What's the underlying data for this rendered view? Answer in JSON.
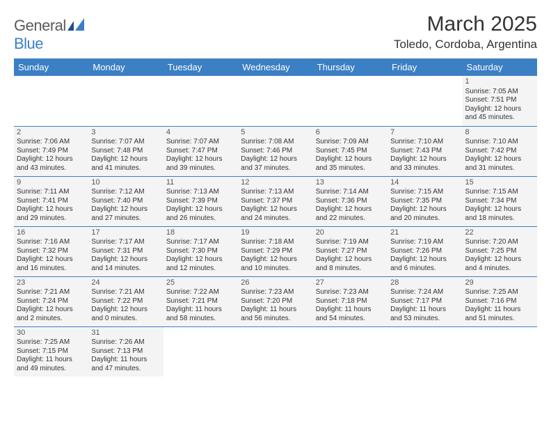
{
  "logo": {
    "text1": "General",
    "text2": "Blue"
  },
  "title": "March 2025",
  "location": "Toledo, Cordoba, Argentina",
  "colors": {
    "header_bg": "#3b7fc4",
    "header_text": "#ffffff",
    "cell_bg": "#f4f4f4",
    "border": "#3b7fc4"
  },
  "weekdays": [
    "Sunday",
    "Monday",
    "Tuesday",
    "Wednesday",
    "Thursday",
    "Friday",
    "Saturday"
  ],
  "weeks": [
    [
      null,
      null,
      null,
      null,
      null,
      null,
      {
        "n": "1",
        "sr": "Sunrise: 7:05 AM",
        "ss": "Sunset: 7:51 PM",
        "dl1": "Daylight: 12 hours",
        "dl2": "and 45 minutes."
      }
    ],
    [
      {
        "n": "2",
        "sr": "Sunrise: 7:06 AM",
        "ss": "Sunset: 7:49 PM",
        "dl1": "Daylight: 12 hours",
        "dl2": "and 43 minutes."
      },
      {
        "n": "3",
        "sr": "Sunrise: 7:07 AM",
        "ss": "Sunset: 7:48 PM",
        "dl1": "Daylight: 12 hours",
        "dl2": "and 41 minutes."
      },
      {
        "n": "4",
        "sr": "Sunrise: 7:07 AM",
        "ss": "Sunset: 7:47 PM",
        "dl1": "Daylight: 12 hours",
        "dl2": "and 39 minutes."
      },
      {
        "n": "5",
        "sr": "Sunrise: 7:08 AM",
        "ss": "Sunset: 7:46 PM",
        "dl1": "Daylight: 12 hours",
        "dl2": "and 37 minutes."
      },
      {
        "n": "6",
        "sr": "Sunrise: 7:09 AM",
        "ss": "Sunset: 7:45 PM",
        "dl1": "Daylight: 12 hours",
        "dl2": "and 35 minutes."
      },
      {
        "n": "7",
        "sr": "Sunrise: 7:10 AM",
        "ss": "Sunset: 7:43 PM",
        "dl1": "Daylight: 12 hours",
        "dl2": "and 33 minutes."
      },
      {
        "n": "8",
        "sr": "Sunrise: 7:10 AM",
        "ss": "Sunset: 7:42 PM",
        "dl1": "Daylight: 12 hours",
        "dl2": "and 31 minutes."
      }
    ],
    [
      {
        "n": "9",
        "sr": "Sunrise: 7:11 AM",
        "ss": "Sunset: 7:41 PM",
        "dl1": "Daylight: 12 hours",
        "dl2": "and 29 minutes."
      },
      {
        "n": "10",
        "sr": "Sunrise: 7:12 AM",
        "ss": "Sunset: 7:40 PM",
        "dl1": "Daylight: 12 hours",
        "dl2": "and 27 minutes."
      },
      {
        "n": "11",
        "sr": "Sunrise: 7:13 AM",
        "ss": "Sunset: 7:39 PM",
        "dl1": "Daylight: 12 hours",
        "dl2": "and 26 minutes."
      },
      {
        "n": "12",
        "sr": "Sunrise: 7:13 AM",
        "ss": "Sunset: 7:37 PM",
        "dl1": "Daylight: 12 hours",
        "dl2": "and 24 minutes."
      },
      {
        "n": "13",
        "sr": "Sunrise: 7:14 AM",
        "ss": "Sunset: 7:36 PM",
        "dl1": "Daylight: 12 hours",
        "dl2": "and 22 minutes."
      },
      {
        "n": "14",
        "sr": "Sunrise: 7:15 AM",
        "ss": "Sunset: 7:35 PM",
        "dl1": "Daylight: 12 hours",
        "dl2": "and 20 minutes."
      },
      {
        "n": "15",
        "sr": "Sunrise: 7:15 AM",
        "ss": "Sunset: 7:34 PM",
        "dl1": "Daylight: 12 hours",
        "dl2": "and 18 minutes."
      }
    ],
    [
      {
        "n": "16",
        "sr": "Sunrise: 7:16 AM",
        "ss": "Sunset: 7:32 PM",
        "dl1": "Daylight: 12 hours",
        "dl2": "and 16 minutes."
      },
      {
        "n": "17",
        "sr": "Sunrise: 7:17 AM",
        "ss": "Sunset: 7:31 PM",
        "dl1": "Daylight: 12 hours",
        "dl2": "and 14 minutes."
      },
      {
        "n": "18",
        "sr": "Sunrise: 7:17 AM",
        "ss": "Sunset: 7:30 PM",
        "dl1": "Daylight: 12 hours",
        "dl2": "and 12 minutes."
      },
      {
        "n": "19",
        "sr": "Sunrise: 7:18 AM",
        "ss": "Sunset: 7:29 PM",
        "dl1": "Daylight: 12 hours",
        "dl2": "and 10 minutes."
      },
      {
        "n": "20",
        "sr": "Sunrise: 7:19 AM",
        "ss": "Sunset: 7:27 PM",
        "dl1": "Daylight: 12 hours",
        "dl2": "and 8 minutes."
      },
      {
        "n": "21",
        "sr": "Sunrise: 7:19 AM",
        "ss": "Sunset: 7:26 PM",
        "dl1": "Daylight: 12 hours",
        "dl2": "and 6 minutes."
      },
      {
        "n": "22",
        "sr": "Sunrise: 7:20 AM",
        "ss": "Sunset: 7:25 PM",
        "dl1": "Daylight: 12 hours",
        "dl2": "and 4 minutes."
      }
    ],
    [
      {
        "n": "23",
        "sr": "Sunrise: 7:21 AM",
        "ss": "Sunset: 7:24 PM",
        "dl1": "Daylight: 12 hours",
        "dl2": "and 2 minutes."
      },
      {
        "n": "24",
        "sr": "Sunrise: 7:21 AM",
        "ss": "Sunset: 7:22 PM",
        "dl1": "Daylight: 12 hours",
        "dl2": "and 0 minutes."
      },
      {
        "n": "25",
        "sr": "Sunrise: 7:22 AM",
        "ss": "Sunset: 7:21 PM",
        "dl1": "Daylight: 11 hours",
        "dl2": "and 58 minutes."
      },
      {
        "n": "26",
        "sr": "Sunrise: 7:23 AM",
        "ss": "Sunset: 7:20 PM",
        "dl1": "Daylight: 11 hours",
        "dl2": "and 56 minutes."
      },
      {
        "n": "27",
        "sr": "Sunrise: 7:23 AM",
        "ss": "Sunset: 7:18 PM",
        "dl1": "Daylight: 11 hours",
        "dl2": "and 54 minutes."
      },
      {
        "n": "28",
        "sr": "Sunrise: 7:24 AM",
        "ss": "Sunset: 7:17 PM",
        "dl1": "Daylight: 11 hours",
        "dl2": "and 53 minutes."
      },
      {
        "n": "29",
        "sr": "Sunrise: 7:25 AM",
        "ss": "Sunset: 7:16 PM",
        "dl1": "Daylight: 11 hours",
        "dl2": "and 51 minutes."
      }
    ],
    [
      {
        "n": "30",
        "sr": "Sunrise: 7:25 AM",
        "ss": "Sunset: 7:15 PM",
        "dl1": "Daylight: 11 hours",
        "dl2": "and 49 minutes."
      },
      {
        "n": "31",
        "sr": "Sunrise: 7:26 AM",
        "ss": "Sunset: 7:13 PM",
        "dl1": "Daylight: 11 hours",
        "dl2": "and 47 minutes."
      },
      null,
      null,
      null,
      null,
      null
    ]
  ]
}
